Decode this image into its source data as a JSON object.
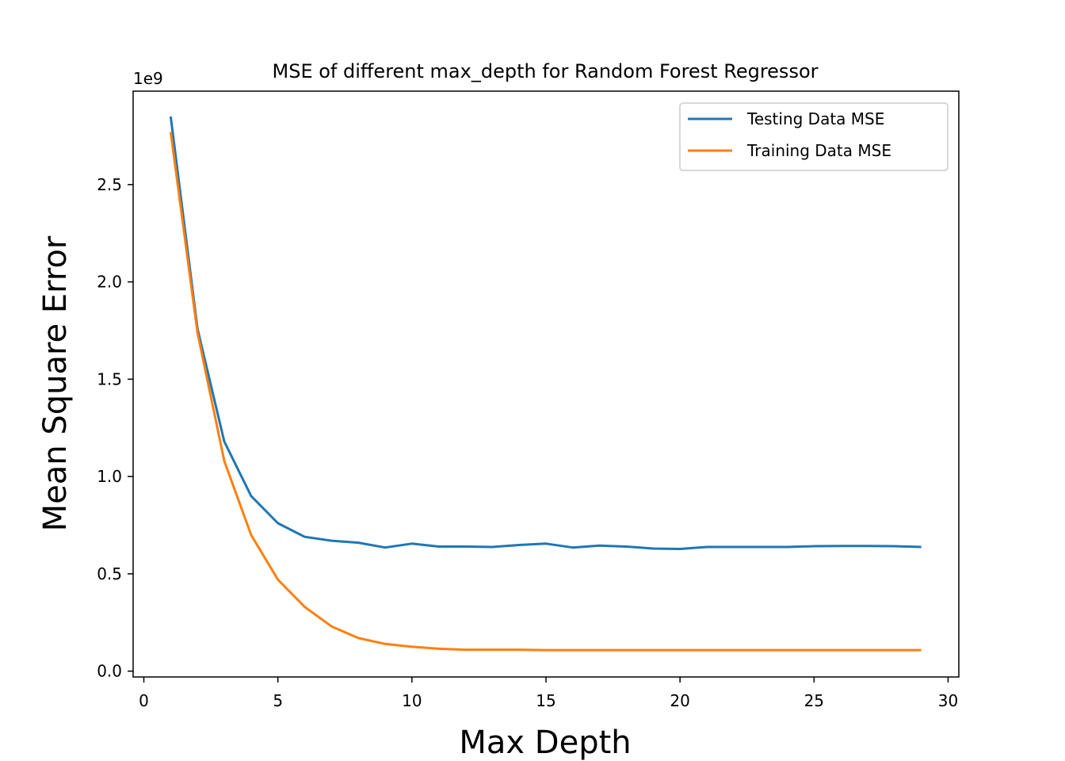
{
  "chart_data": {
    "type": "line",
    "title": "MSE of different max_depth for Random Forest Regressor",
    "xlabel": "Max Depth",
    "ylabel": "Mean Square Error",
    "y_offset_label": "1e9",
    "xlim": [
      -0.4,
      30.4
    ],
    "ylim": [
      -0.03,
      2.98
    ],
    "x_ticks": [
      0,
      5,
      10,
      15,
      20,
      25,
      30
    ],
    "x_tick_labels": [
      "0",
      "5",
      "10",
      "15",
      "20",
      "25",
      "30"
    ],
    "y_ticks": [
      0.0,
      0.5,
      1.0,
      1.5,
      2.0,
      2.5
    ],
    "y_tick_labels": [
      "0.0",
      "0.5",
      "1.0",
      "1.5",
      "2.0",
      "2.5"
    ],
    "grid": false,
    "legend_position": "top-right",
    "x": [
      1,
      2,
      3,
      4,
      5,
      6,
      7,
      8,
      9,
      10,
      11,
      12,
      13,
      14,
      15,
      16,
      17,
      18,
      19,
      20,
      21,
      22,
      23,
      24,
      25,
      26,
      27,
      28,
      29
    ],
    "series": [
      {
        "name": "Testing Data MSE",
        "color": "#1f77b4",
        "values": [
          2.85,
          1.76,
          1.18,
          0.9,
          0.76,
          0.69,
          0.67,
          0.66,
          0.635,
          0.655,
          0.64,
          0.64,
          0.638,
          0.648,
          0.655,
          0.635,
          0.645,
          0.64,
          0.63,
          0.628,
          0.638,
          0.638,
          0.638,
          0.638,
          0.642,
          0.643,
          0.643,
          0.642,
          0.638
        ]
      },
      {
        "name": "Training Data MSE",
        "color": "#ff7f0e",
        "values": [
          2.77,
          1.74,
          1.08,
          0.7,
          0.47,
          0.33,
          0.23,
          0.17,
          0.14,
          0.125,
          0.115,
          0.11,
          0.11,
          0.11,
          0.108,
          0.108,
          0.108,
          0.108,
          0.108,
          0.108,
          0.108,
          0.108,
          0.108,
          0.108,
          0.108,
          0.108,
          0.108,
          0.108,
          0.108
        ]
      }
    ]
  }
}
